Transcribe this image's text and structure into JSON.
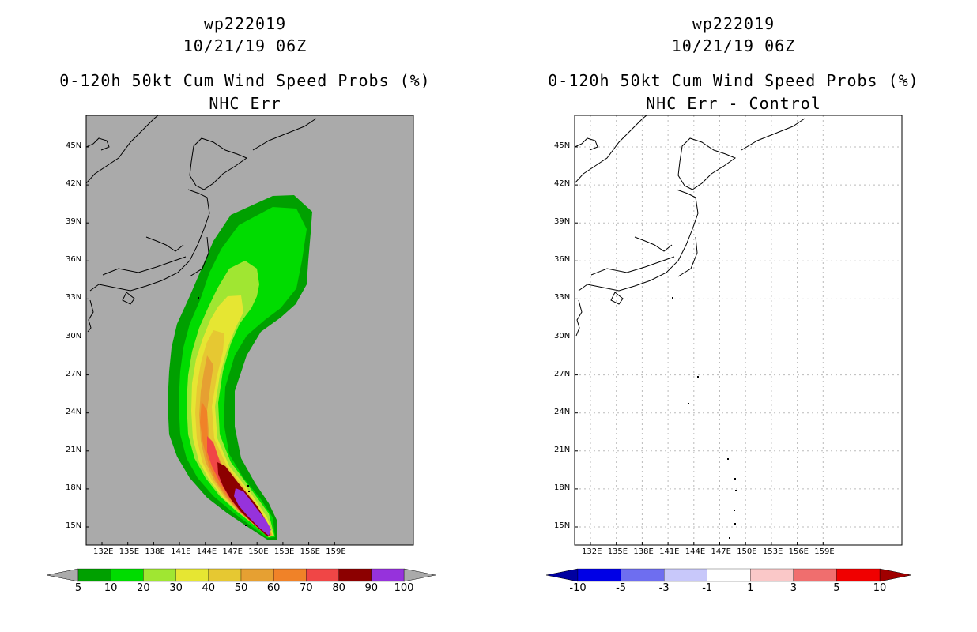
{
  "left_panel": {
    "title_line1": "wp222019",
    "title_line2": "10/21/19 06Z",
    "title_line3": "0-120h 50kt Cum Wind Speed Probs (%)",
    "title_line4": "NHC Err",
    "background_color": "#aaaaaa",
    "colorbar": {
      "labels": [
        "5",
        "10",
        "20",
        "30",
        "40",
        "50",
        "60",
        "70",
        "80",
        "90",
        "100"
      ],
      "colors": [
        "#00a000",
        "#00dc00",
        "#a0e632",
        "#e6e632",
        "#e6c832",
        "#e6a032",
        "#f08228",
        "#f04646",
        "#8c0000",
        "#9632dc"
      ],
      "under_color": "#aaaaaa",
      "over_color": "#aaaaaa"
    }
  },
  "right_panel": {
    "title_line1": "wp222019",
    "title_line2": "10/21/19 06Z",
    "title_line3": "0-120h 50kt Cum Wind Speed Probs (%)",
    "title_line4": "NHC Err - Control",
    "background_color": "#ffffff",
    "colorbar": {
      "labels": [
        "-10",
        "-5",
        "-3",
        "-1",
        "1",
        "3",
        "5",
        "10"
      ],
      "colors": [
        "#0000e6",
        "#6e6ef0",
        "#c8c8fa",
        "#ffffff",
        "#fac8c8",
        "#f06e6e",
        "#f00000"
      ],
      "under_color": "#0000a0",
      "over_color": "#a00000"
    }
  },
  "axes": {
    "lat_labels": [
      "45N",
      "42N",
      "39N",
      "36N",
      "33N",
      "30N",
      "27N",
      "24N",
      "21N",
      "18N",
      "15N"
    ],
    "lon_labels": [
      "132E",
      "135E",
      "138E",
      "141E",
      "144E",
      "147E",
      "150E",
      "153E",
      "156E",
      "159E"
    ]
  }
}
